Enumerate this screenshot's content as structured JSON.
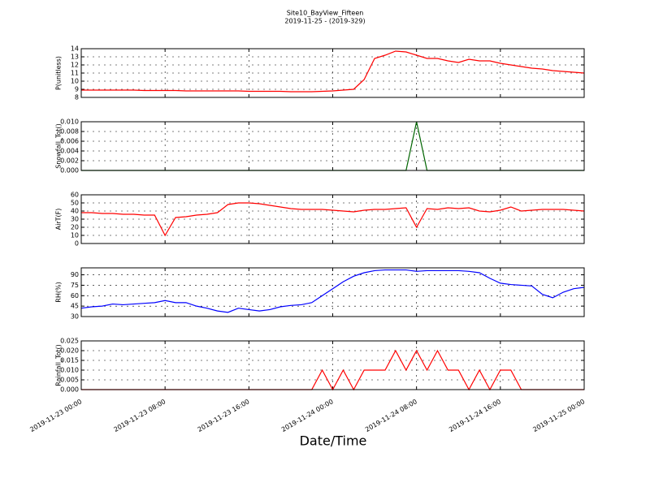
{
  "title": "Site10_BayView_Fifteen",
  "subtitle": "2019-11-25 - (2019-329)",
  "xlabel": "Date/Time",
  "chart_data": [
    {
      "type": "line",
      "ylabel": "P(unitless)",
      "color": "#ff0000",
      "grid": true,
      "xlim": [
        "2019-11-23 00:00",
        "2019-11-25 00:00"
      ],
      "xticks": [
        "2019-11-23 00:00",
        "2019-11-23 08:00",
        "2019-11-23 16:00",
        "2019-11-24 00:00",
        "2019-11-24 08:00",
        "2019-11-24 16:00",
        "2019-11-25 00:00"
      ],
      "ylim": [
        8,
        14
      ],
      "yticks": [
        8,
        9,
        10,
        11,
        12,
        13,
        14
      ],
      "x": [
        "2019-11-23 00:00",
        "2019-11-23 01:00",
        "2019-11-23 02:00",
        "2019-11-23 03:00",
        "2019-11-23 04:00",
        "2019-11-23 05:00",
        "2019-11-23 06:00",
        "2019-11-23 07:00",
        "2019-11-23 08:00",
        "2019-11-23 09:00",
        "2019-11-23 10:00",
        "2019-11-23 11:00",
        "2019-11-23 12:00",
        "2019-11-23 13:00",
        "2019-11-23 14:00",
        "2019-11-23 15:00",
        "2019-11-23 16:00",
        "2019-11-23 17:00",
        "2019-11-23 18:00",
        "2019-11-23 19:00",
        "2019-11-23 20:00",
        "2019-11-23 21:00",
        "2019-11-23 22:00",
        "2019-11-23 23:00",
        "2019-11-24 00:00",
        "2019-11-24 01:00",
        "2019-11-24 02:00",
        "2019-11-24 03:00",
        "2019-11-24 04:00",
        "2019-11-24 05:00",
        "2019-11-24 06:00",
        "2019-11-24 07:00",
        "2019-11-24 08:00",
        "2019-11-24 09:00",
        "2019-11-24 10:00",
        "2019-11-24 11:00",
        "2019-11-24 12:00",
        "2019-11-24 13:00",
        "2019-11-24 14:00",
        "2019-11-24 15:00",
        "2019-11-24 16:00",
        "2019-11-24 17:00",
        "2019-11-24 18:00",
        "2019-11-24 19:00",
        "2019-11-24 20:00",
        "2019-11-24 21:00",
        "2019-11-24 22:00",
        "2019-11-24 23:00",
        "2019-11-25 00:00"
      ],
      "values": [
        8.9,
        8.9,
        8.9,
        8.9,
        8.9,
        8.9,
        8.85,
        8.85,
        8.85,
        8.85,
        8.8,
        8.8,
        8.8,
        8.8,
        8.8,
        8.8,
        8.75,
        8.75,
        8.75,
        8.75,
        8.7,
        8.7,
        8.7,
        8.75,
        8.8,
        8.9,
        9.0,
        10.2,
        12.8,
        13.2,
        13.7,
        13.6,
        13.2,
        12.8,
        12.8,
        12.5,
        12.3,
        12.7,
        12.5,
        12.5,
        12.2,
        12.0,
        11.8,
        11.6,
        11.5,
        11.3,
        11.2,
        11.1,
        11.0
      ]
    },
    {
      "type": "line",
      "ylabel": "Snowfall_Tot()",
      "color": "#006400",
      "grid": true,
      "xlim": [
        "2019-11-23 00:00",
        "2019-11-25 00:00"
      ],
      "xticks": [
        "2019-11-23 00:00",
        "2019-11-23 08:00",
        "2019-11-23 16:00",
        "2019-11-24 00:00",
        "2019-11-24 08:00",
        "2019-11-24 16:00",
        "2019-11-25 00:00"
      ],
      "ylim": [
        0,
        0.01
      ],
      "yticks": [
        {
          "value": 0,
          "label": "0.000"
        },
        {
          "value": 0.002,
          "label": "0.002"
        },
        {
          "value": 0.004,
          "label": "0.004"
        },
        {
          "value": 0.006,
          "label": "0.006"
        },
        {
          "value": 0.008,
          "label": "0.008"
        },
        {
          "value": 0.01,
          "label": "0.010"
        }
      ],
      "x": [
        "2019-11-23 00:00",
        "2019-11-23 01:00",
        "2019-11-23 02:00",
        "2019-11-23 03:00",
        "2019-11-23 04:00",
        "2019-11-23 05:00",
        "2019-11-23 06:00",
        "2019-11-23 07:00",
        "2019-11-23 08:00",
        "2019-11-23 09:00",
        "2019-11-23 10:00",
        "2019-11-23 11:00",
        "2019-11-23 12:00",
        "2019-11-23 13:00",
        "2019-11-23 14:00",
        "2019-11-23 15:00",
        "2019-11-23 16:00",
        "2019-11-23 17:00",
        "2019-11-23 18:00",
        "2019-11-23 19:00",
        "2019-11-23 20:00",
        "2019-11-23 21:00",
        "2019-11-23 22:00",
        "2019-11-23 23:00",
        "2019-11-24 00:00",
        "2019-11-24 01:00",
        "2019-11-24 02:00",
        "2019-11-24 03:00",
        "2019-11-24 04:00",
        "2019-11-24 05:00",
        "2019-11-24 06:00",
        "2019-11-24 07:00",
        "2019-11-24 08:00",
        "2019-11-24 09:00",
        "2019-11-24 10:00",
        "2019-11-24 11:00",
        "2019-11-24 12:00",
        "2019-11-24 13:00",
        "2019-11-24 14:00",
        "2019-11-24 15:00",
        "2019-11-24 16:00",
        "2019-11-24 17:00",
        "2019-11-24 18:00",
        "2019-11-24 19:00",
        "2019-11-24 20:00",
        "2019-11-24 21:00",
        "2019-11-24 22:00",
        "2019-11-24 23:00",
        "2019-11-25 00:00"
      ],
      "values": [
        0,
        0,
        0,
        0,
        0,
        0,
        0,
        0,
        0,
        0,
        0,
        0,
        0,
        0,
        0,
        0,
        0,
        0,
        0,
        0,
        0,
        0,
        0,
        0,
        0,
        0,
        0,
        0,
        0,
        0,
        0,
        0,
        0.01,
        0,
        0,
        0,
        0,
        0,
        0,
        0,
        0,
        0,
        0,
        0,
        0,
        0,
        0,
        0,
        0
      ]
    },
    {
      "type": "line",
      "ylabel": "AirT(F)",
      "color": "#ff0000",
      "grid": true,
      "xlim": [
        "2019-11-23 00:00",
        "2019-11-25 00:00"
      ],
      "xticks": [
        "2019-11-23 00:00",
        "2019-11-23 08:00",
        "2019-11-23 16:00",
        "2019-11-24 00:00",
        "2019-11-24 08:00",
        "2019-11-24 16:00",
        "2019-11-25 00:00"
      ],
      "ylim": [
        0,
        60
      ],
      "yticks": [
        0,
        10,
        20,
        30,
        40,
        50,
        60
      ],
      "x": [
        "2019-11-23 00:00",
        "2019-11-23 01:00",
        "2019-11-23 02:00",
        "2019-11-23 03:00",
        "2019-11-23 04:00",
        "2019-11-23 05:00",
        "2019-11-23 06:00",
        "2019-11-23 07:00",
        "2019-11-23 08:00",
        "2019-11-23 09:00",
        "2019-11-23 10:00",
        "2019-11-23 11:00",
        "2019-11-23 12:00",
        "2019-11-23 13:00",
        "2019-11-23 14:00",
        "2019-11-23 15:00",
        "2019-11-23 16:00",
        "2019-11-23 17:00",
        "2019-11-23 18:00",
        "2019-11-23 19:00",
        "2019-11-23 20:00",
        "2019-11-23 21:00",
        "2019-11-23 22:00",
        "2019-11-23 23:00",
        "2019-11-24 00:00",
        "2019-11-24 01:00",
        "2019-11-24 02:00",
        "2019-11-24 03:00",
        "2019-11-24 04:00",
        "2019-11-24 05:00",
        "2019-11-24 06:00",
        "2019-11-24 07:00",
        "2019-11-24 08:00",
        "2019-11-24 09:00",
        "2019-11-24 10:00",
        "2019-11-24 11:00",
        "2019-11-24 12:00",
        "2019-11-24 13:00",
        "2019-11-24 14:00",
        "2019-11-24 15:00",
        "2019-11-24 16:00",
        "2019-11-24 17:00",
        "2019-11-24 18:00",
        "2019-11-24 19:00",
        "2019-11-24 20:00",
        "2019-11-24 21:00",
        "2019-11-24 22:00",
        "2019-11-24 23:00",
        "2019-11-25 00:00"
      ],
      "values": [
        38,
        38,
        37,
        37,
        36,
        36,
        35,
        35,
        10,
        32,
        33,
        35,
        36,
        38,
        48,
        50,
        50,
        49,
        47,
        45,
        43,
        42,
        42,
        42,
        41,
        40,
        39,
        41,
        42,
        42,
        43,
        44,
        20,
        43,
        42,
        44,
        43,
        44,
        40,
        39,
        41,
        45,
        40,
        41,
        42,
        42,
        42,
        41,
        40
      ]
    },
    {
      "type": "line",
      "ylabel": "RH(%)",
      "color": "#0000ff",
      "grid": true,
      "xlim": [
        "2019-11-23 00:00",
        "2019-11-25 00:00"
      ],
      "xticks": [
        "2019-11-23 00:00",
        "2019-11-23 08:00",
        "2019-11-23 16:00",
        "2019-11-24 00:00",
        "2019-11-24 08:00",
        "2019-11-24 16:00",
        "2019-11-25 00:00"
      ],
      "ylim": [
        30,
        100
      ],
      "yticks": [
        30,
        45,
        60,
        75,
        90
      ],
      "x": [
        "2019-11-23 00:00",
        "2019-11-23 01:00",
        "2019-11-23 02:00",
        "2019-11-23 03:00",
        "2019-11-23 04:00",
        "2019-11-23 05:00",
        "2019-11-23 06:00",
        "2019-11-23 07:00",
        "2019-11-23 08:00",
        "2019-11-23 09:00",
        "2019-11-23 10:00",
        "2019-11-23 11:00",
        "2019-11-23 12:00",
        "2019-11-23 13:00",
        "2019-11-23 14:00",
        "2019-11-23 15:00",
        "2019-11-23 16:00",
        "2019-11-23 17:00",
        "2019-11-23 18:00",
        "2019-11-23 19:00",
        "2019-11-23 20:00",
        "2019-11-23 21:00",
        "2019-11-23 22:00",
        "2019-11-23 23:00",
        "2019-11-24 00:00",
        "2019-11-24 01:00",
        "2019-11-24 02:00",
        "2019-11-24 03:00",
        "2019-11-24 04:00",
        "2019-11-24 05:00",
        "2019-11-24 06:00",
        "2019-11-24 07:00",
        "2019-11-24 08:00",
        "2019-11-24 09:00",
        "2019-11-24 10:00",
        "2019-11-24 11:00",
        "2019-11-24 12:00",
        "2019-11-24 13:00",
        "2019-11-24 14:00",
        "2019-11-24 15:00",
        "2019-11-24 16:00",
        "2019-11-24 17:00",
        "2019-11-24 18:00",
        "2019-11-24 19:00",
        "2019-11-24 20:00",
        "2019-11-24 21:00",
        "2019-11-24 22:00",
        "2019-11-24 23:00",
        "2019-11-25 00:00"
      ],
      "values": [
        42,
        44,
        45,
        48,
        47,
        48,
        49,
        50,
        53,
        50,
        50,
        45,
        42,
        38,
        36,
        42,
        40,
        38,
        40,
        44,
        46,
        47,
        50,
        60,
        70,
        80,
        88,
        93,
        96,
        97,
        97,
        97,
        95,
        96,
        96,
        96,
        96,
        95,
        93,
        85,
        78,
        76,
        75,
        74,
        62,
        57,
        65,
        70,
        72
      ]
    },
    {
      "type": "line",
      "ylabel": "Rainfall_Tot()",
      "color": "#ff0000",
      "grid": true,
      "xlim": [
        "2019-11-23 00:00",
        "2019-11-25 00:00"
      ],
      "xticks": [
        "2019-11-23 00:00",
        "2019-11-23 08:00",
        "2019-11-23 16:00",
        "2019-11-24 00:00",
        "2019-11-24 08:00",
        "2019-11-24 16:00",
        "2019-11-25 00:00"
      ],
      "ylim": [
        0,
        0.025
      ],
      "yticks": [
        {
          "value": 0,
          "label": "0.000"
        },
        {
          "value": 0.005,
          "label": "0.005"
        },
        {
          "value": 0.01,
          "label": "0.010"
        },
        {
          "value": 0.015,
          "label": "0.015"
        },
        {
          "value": 0.02,
          "label": "0.020"
        },
        {
          "value": 0.025,
          "label": "0.025"
        }
      ],
      "x": [
        "2019-11-23 00:00",
        "2019-11-23 01:00",
        "2019-11-23 02:00",
        "2019-11-23 03:00",
        "2019-11-23 04:00",
        "2019-11-23 05:00",
        "2019-11-23 06:00",
        "2019-11-23 07:00",
        "2019-11-23 08:00",
        "2019-11-23 09:00",
        "2019-11-23 10:00",
        "2019-11-23 11:00",
        "2019-11-23 12:00",
        "2019-11-23 13:00",
        "2019-11-23 14:00",
        "2019-11-23 15:00",
        "2019-11-23 16:00",
        "2019-11-23 17:00",
        "2019-11-23 18:00",
        "2019-11-23 19:00",
        "2019-11-23 20:00",
        "2019-11-23 21:00",
        "2019-11-23 22:00",
        "2019-11-23 23:00",
        "2019-11-24 00:00",
        "2019-11-24 01:00",
        "2019-11-24 02:00",
        "2019-11-24 03:00",
        "2019-11-24 04:00",
        "2019-11-24 05:00",
        "2019-11-24 06:00",
        "2019-11-24 07:00",
        "2019-11-24 08:00",
        "2019-11-24 09:00",
        "2019-11-24 10:00",
        "2019-11-24 11:00",
        "2019-11-24 12:00",
        "2019-11-24 13:00",
        "2019-11-24 14:00",
        "2019-11-24 15:00",
        "2019-11-24 16:00",
        "2019-11-24 17:00",
        "2019-11-24 18:00",
        "2019-11-24 19:00",
        "2019-11-24 20:00",
        "2019-11-24 21:00",
        "2019-11-24 22:00",
        "2019-11-24 23:00",
        "2019-11-25 00:00"
      ],
      "values": [
        0,
        0,
        0,
        0,
        0,
        0,
        0,
        0,
        0,
        0,
        0,
        0,
        0,
        0,
        0,
        0,
        0,
        0,
        0,
        0,
        0,
        0,
        0,
        0.01,
        0,
        0.01,
        0,
        0.01,
        0.01,
        0.01,
        0.02,
        0.01,
        0.02,
        0.01,
        0.02,
        0.01,
        0.01,
        0,
        0.01,
        0,
        0.01,
        0.01,
        0,
        0,
        0,
        0,
        0,
        0,
        0
      ]
    }
  ]
}
